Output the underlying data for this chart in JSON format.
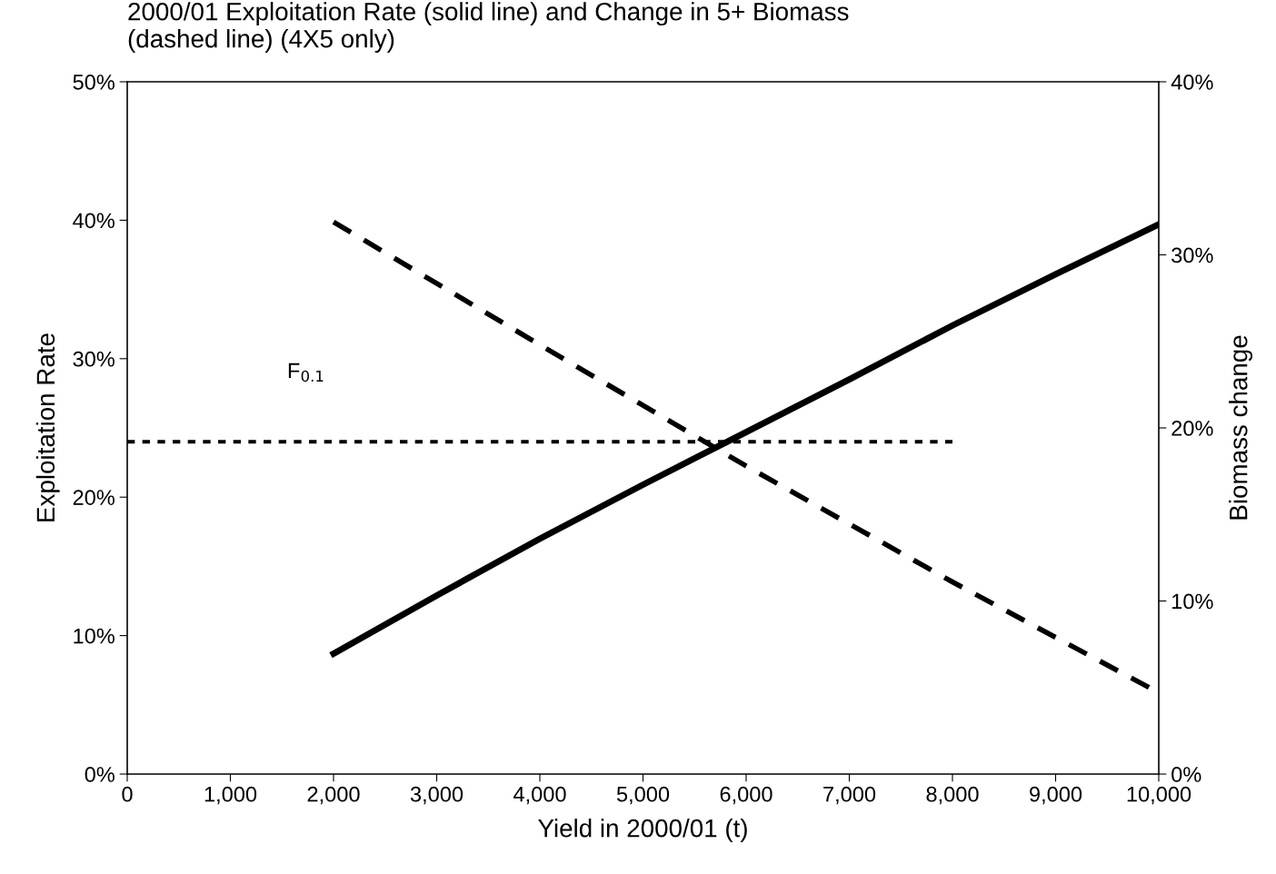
{
  "chart_data": {
    "type": "line",
    "title": "2000/01 Exploitation Rate (solid line) and Change in 5+ Biomass\n(dashed line) (4X5 only)",
    "xlabel": "Yield in 2000/01 (t)",
    "ylabel": "Exploitation Rate",
    "y2label": "Biomass change",
    "series": [
      {
        "color": "#000000",
        "line_style": "solid",
        "x": [
          2000,
          3000,
          4000,
          5000,
          6000,
          7000,
          8000,
          9000,
          10000
        ],
        "values": [
          8.7,
          12.9,
          17.0,
          20.9,
          24.7,
          28.5,
          32.4,
          36.1,
          39.7
        ]
      },
      {
        "color": "#000000",
        "line_style": "dashed",
        "axis": "y2",
        "x": [
          2000,
          4000,
          6000,
          8000,
          10000
        ],
        "values": [
          31.9,
          24.8,
          17.8,
          11.1,
          4.7
        ]
      },
      {
        "color": "#000000",
        "line_style": "dotted",
        "x": [
          0,
          8000
        ],
        "values": [
          24,
          24
        ]
      }
    ],
    "annotations": [
      "F$_{0.1}$"
    ],
    "xlim": [
      0,
      10000
    ],
    "xticks": [
      {
        "value": 0,
        "label": "0"
      },
      {
        "value": 1000,
        "label": "1,000"
      },
      {
        "value": 2000,
        "label": "2,000"
      },
      {
        "value": 3000,
        "label": "3,000"
      },
      {
        "value": 4000,
        "label": "4,000"
      },
      {
        "value": 5000,
        "label": "5,000"
      },
      {
        "value": 6000,
        "label": "6,000"
      },
      {
        "value": 7000,
        "label": "7,000"
      },
      {
        "value": 8000,
        "label": "8,000"
      },
      {
        "value": 9000,
        "label": "9,000"
      },
      {
        "value": 10000,
        "label": "10,000"
      }
    ],
    "ylim": [
      0,
      50
    ],
    "yticks": [
      {
        "value": 0,
        "label": "0%"
      },
      {
        "value": 10,
        "label": "10%"
      },
      {
        "value": 20,
        "label": "20%"
      },
      {
        "value": 30,
        "label": "30%"
      },
      {
        "value": 40,
        "label": "40%"
      },
      {
        "value": 50,
        "label": "50%"
      }
    ],
    "y2lim": [
      0,
      40
    ],
    "y2ticks": [
      {
        "value": 0,
        "label": "0%"
      },
      {
        "value": 10,
        "label": "10%"
      },
      {
        "value": 20,
        "label": "20%"
      },
      {
        "value": 30,
        "label": "30%"
      },
      {
        "value": 40,
        "label": "40%"
      }
    ],
    "grid": false,
    "legend": false,
    "marker": "none"
  }
}
